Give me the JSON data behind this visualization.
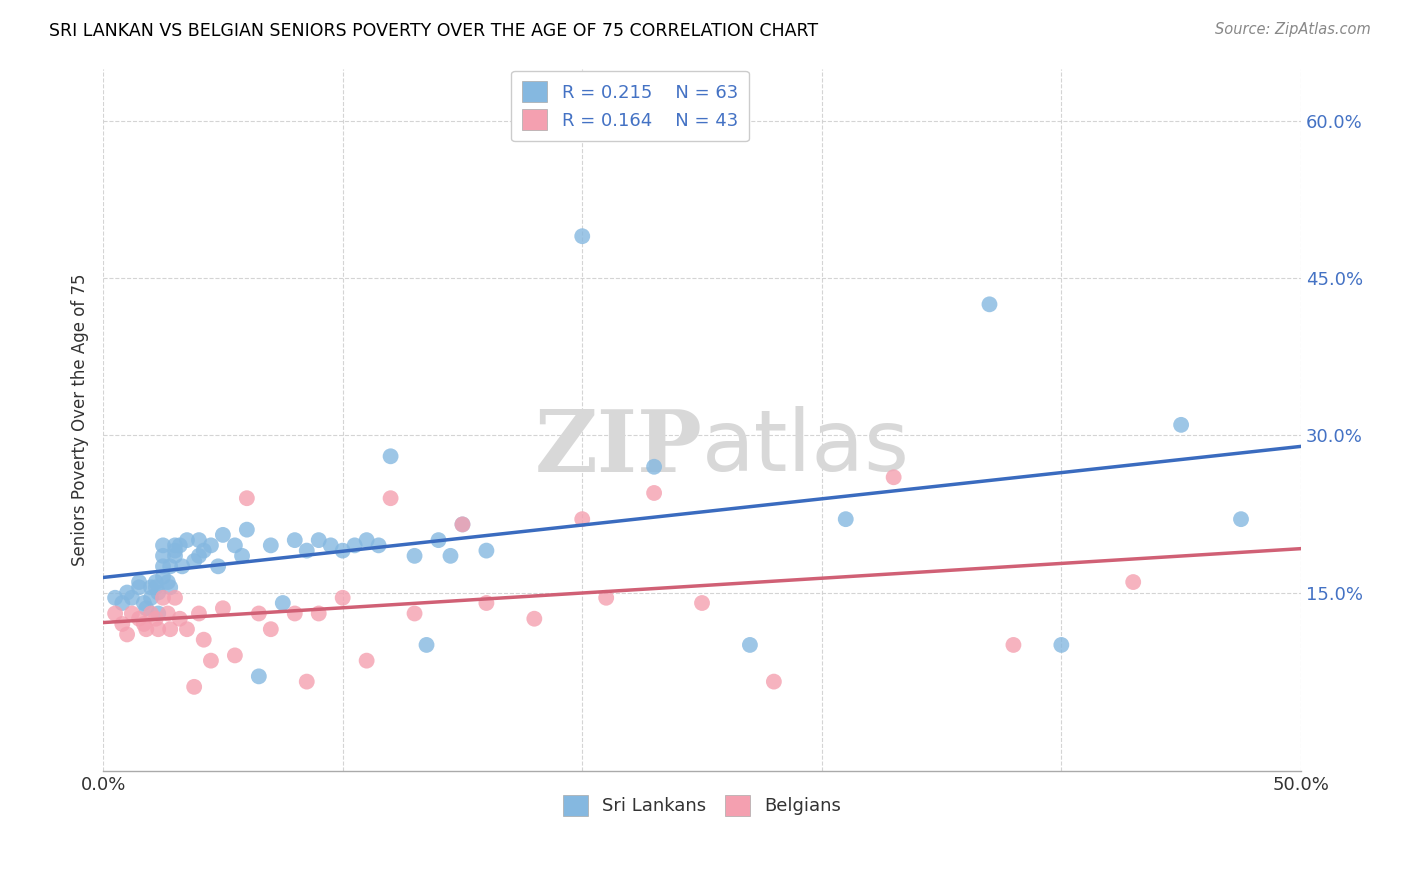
{
  "title": "SRI LANKAN VS BELGIAN SENIORS POVERTY OVER THE AGE OF 75 CORRELATION CHART",
  "source": "Source: ZipAtlas.com",
  "ylabel": "Seniors Poverty Over the Age of 75",
  "xlim": [
    0.0,
    0.5
  ],
  "ylim": [
    -0.02,
    0.65
  ],
  "y_ticks": [
    0.15,
    0.3,
    0.45,
    0.6
  ],
  "y_tick_labels": [
    "15.0%",
    "30.0%",
    "45.0%",
    "60.0%"
  ],
  "x_tick_positions": [
    0.0,
    0.1,
    0.2,
    0.3,
    0.4,
    0.5
  ],
  "x_tick_labels": [
    "0.0%",
    "",
    "",
    "",
    "",
    "50.0%"
  ],
  "background_color": "#ffffff",
  "grid_color": "#d0d0d0",
  "sri_lanka_color": "#85b8e0",
  "belgian_color": "#f4a0b0",
  "sri_lanka_R": 0.215,
  "sri_lanka_N": 63,
  "belgian_R": 0.164,
  "belgian_N": 43,
  "trend_blue": "#3a6bbf",
  "trend_pink": "#d06075",
  "watermark_zip": "ZIP",
  "watermark_atlas": "atlas",
  "sri_lanka_x": [
    0.005,
    0.008,
    0.01,
    0.012,
    0.015,
    0.015,
    0.017,
    0.018,
    0.02,
    0.02,
    0.022,
    0.022,
    0.023,
    0.023,
    0.025,
    0.025,
    0.025,
    0.025,
    0.027,
    0.028,
    0.028,
    0.03,
    0.03,
    0.03,
    0.032,
    0.033,
    0.035,
    0.038,
    0.04,
    0.04,
    0.042,
    0.045,
    0.048,
    0.05,
    0.055,
    0.058,
    0.06,
    0.065,
    0.07,
    0.075,
    0.08,
    0.085,
    0.09,
    0.095,
    0.1,
    0.105,
    0.11,
    0.115,
    0.12,
    0.13,
    0.135,
    0.14,
    0.145,
    0.15,
    0.16,
    0.2,
    0.23,
    0.27,
    0.31,
    0.37,
    0.4,
    0.45,
    0.475
  ],
  "sri_lanka_y": [
    0.145,
    0.14,
    0.15,
    0.145,
    0.16,
    0.155,
    0.14,
    0.135,
    0.155,
    0.145,
    0.16,
    0.155,
    0.15,
    0.13,
    0.195,
    0.185,
    0.175,
    0.165,
    0.16,
    0.175,
    0.155,
    0.195,
    0.19,
    0.185,
    0.195,
    0.175,
    0.2,
    0.18,
    0.2,
    0.185,
    0.19,
    0.195,
    0.175,
    0.205,
    0.195,
    0.185,
    0.21,
    0.07,
    0.195,
    0.14,
    0.2,
    0.19,
    0.2,
    0.195,
    0.19,
    0.195,
    0.2,
    0.195,
    0.28,
    0.185,
    0.1,
    0.2,
    0.185,
    0.215,
    0.19,
    0.49,
    0.27,
    0.1,
    0.22,
    0.425,
    0.1,
    0.31,
    0.22
  ],
  "belgian_x": [
    0.005,
    0.008,
    0.01,
    0.012,
    0.015,
    0.017,
    0.018,
    0.02,
    0.022,
    0.023,
    0.025,
    0.027,
    0.028,
    0.03,
    0.032,
    0.035,
    0.038,
    0.04,
    0.042,
    0.045,
    0.05,
    0.055,
    0.06,
    0.065,
    0.07,
    0.08,
    0.085,
    0.09,
    0.1,
    0.11,
    0.12,
    0.13,
    0.15,
    0.16,
    0.18,
    0.2,
    0.21,
    0.23,
    0.25,
    0.28,
    0.33,
    0.38,
    0.43
  ],
  "belgian_y": [
    0.13,
    0.12,
    0.11,
    0.13,
    0.125,
    0.12,
    0.115,
    0.13,
    0.125,
    0.115,
    0.145,
    0.13,
    0.115,
    0.145,
    0.125,
    0.115,
    0.06,
    0.13,
    0.105,
    0.085,
    0.135,
    0.09,
    0.24,
    0.13,
    0.115,
    0.13,
    0.065,
    0.13,
    0.145,
    0.085,
    0.24,
    0.13,
    0.215,
    0.14,
    0.125,
    0.22,
    0.145,
    0.245,
    0.14,
    0.065,
    0.26,
    0.1,
    0.16
  ]
}
